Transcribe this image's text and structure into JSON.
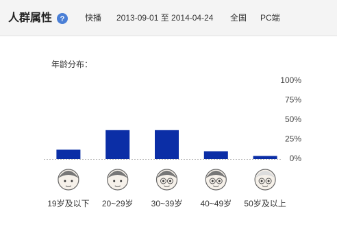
{
  "header": {
    "title": "人群属性",
    "help": "?",
    "keyword": "快播",
    "date_range": "2013-09-01 至 2014-04-24",
    "region": "全国",
    "platform": "PC端"
  },
  "chart_data": {
    "type": "bar",
    "title": "年龄分布：",
    "categories": [
      "19岁及以下",
      "20~29岁",
      "30~39岁",
      "40~49岁",
      "50岁及以上"
    ],
    "values": [
      12,
      37,
      37,
      10,
      4
    ],
    "color": "#0b2ea6",
    "ylim": [
      0,
      100
    ],
    "yticks": [
      {
        "value": 0,
        "label": "0%"
      },
      {
        "value": 25,
        "label": "25%"
      },
      {
        "value": 50,
        "label": "50%"
      },
      {
        "value": 75,
        "label": "75%"
      },
      {
        "value": 100,
        "label": "100%"
      }
    ],
    "grid": false
  }
}
